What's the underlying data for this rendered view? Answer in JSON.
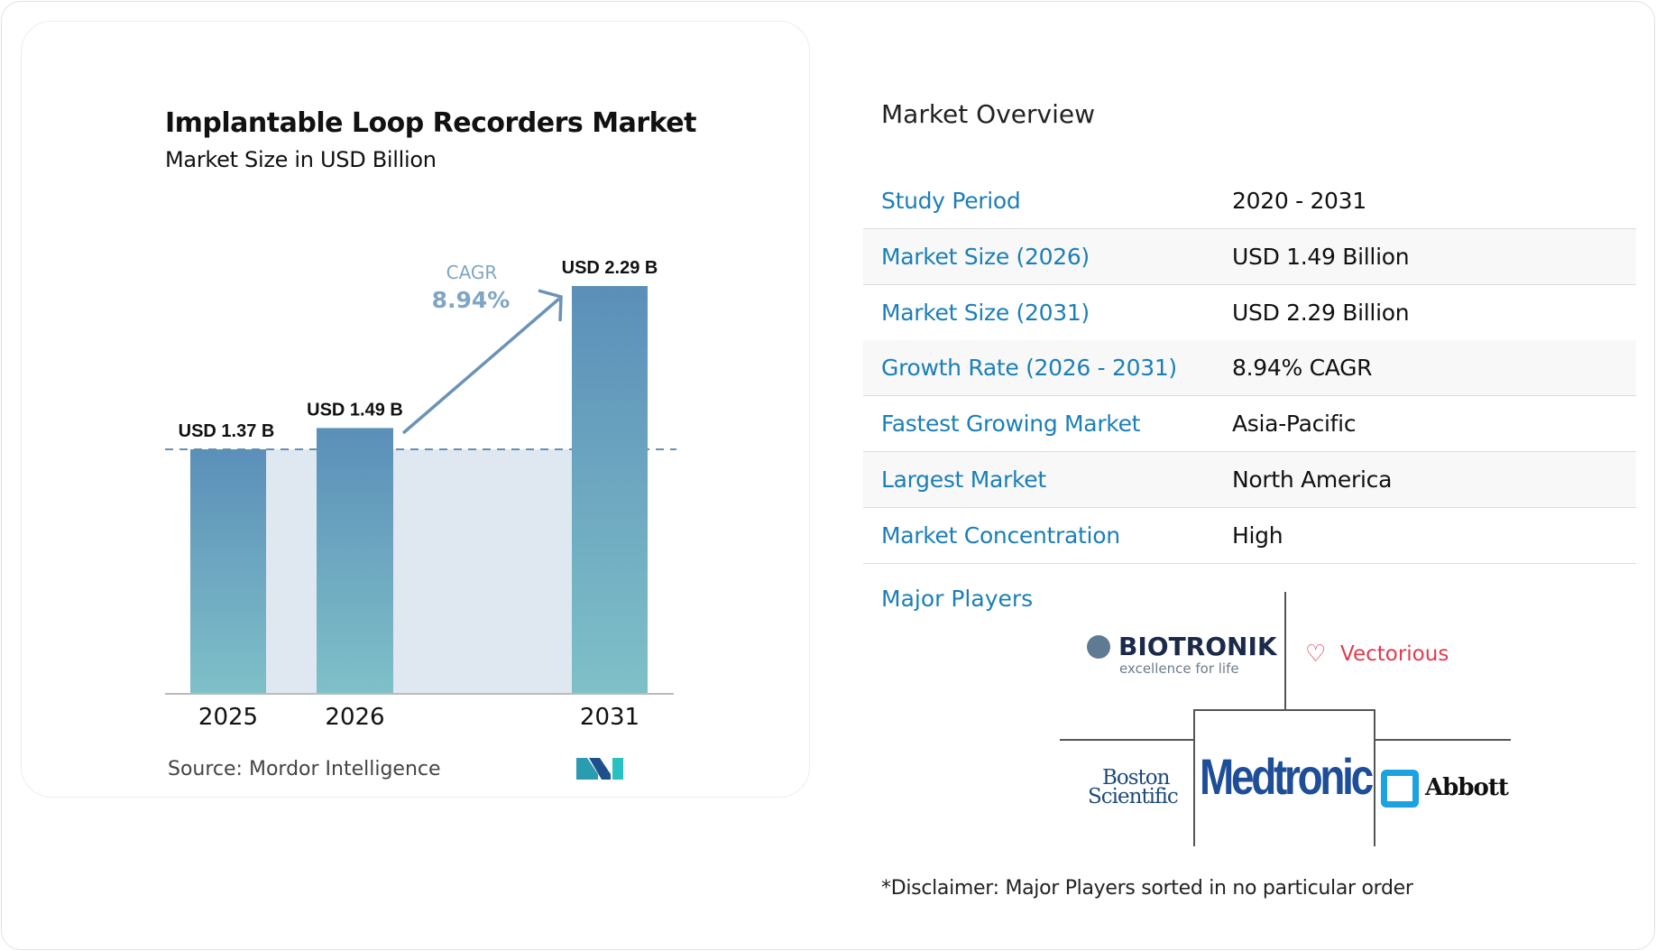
{
  "chart_data": {
    "type": "bar",
    "title": "Implantable Loop Recorders Market",
    "subtitle": "Market Size in USD Billion",
    "categories": [
      "2025",
      "2026",
      "2031"
    ],
    "values": [
      1.37,
      1.49,
      2.29
    ],
    "data_labels": [
      "USD 1.37 B",
      "USD 1.49 B",
      "USD 2.29 B"
    ],
    "annotation": {
      "label": "CAGR",
      "value": "8.94%"
    },
    "reference_line": 1.37,
    "ylim": [
      0,
      2.29
    ],
    "colors": {
      "bar_top": "#5b8fb9",
      "bar_bottom": "#7fc0c8",
      "shade": "#dfe8f1",
      "accent": "#6a93b8"
    },
    "source": "Source:  Mordor Intelligence"
  },
  "overview": {
    "title": "Market Overview",
    "rows": [
      {
        "label": "Study Period",
        "value": "2020 - 2031"
      },
      {
        "label": "Market Size (2026)",
        "value": "USD 1.49 Billion"
      },
      {
        "label": "Market Size (2031)",
        "value": "USD 2.29 Billion"
      },
      {
        "label": "Growth Rate (2026 - 2031)",
        "value": "8.94% CAGR"
      },
      {
        "label": "Fastest Growing Market",
        "value": "Asia-Pacific"
      },
      {
        "label": "Largest Market",
        "value": "North America"
      },
      {
        "label": "Market Concentration",
        "value": "High"
      }
    ],
    "major_players_label": "Major Players",
    "players": {
      "biotronik": "BIOTRONIK",
      "biotronik_tag": "excellence for life",
      "vectorious": "Vectorious",
      "boston1": "Boston",
      "boston2": "Scientific",
      "medtronic": "Medtronic",
      "abbott": "Abbott"
    },
    "disclaimer": "*Disclaimer: Major Players sorted in no particular order"
  }
}
